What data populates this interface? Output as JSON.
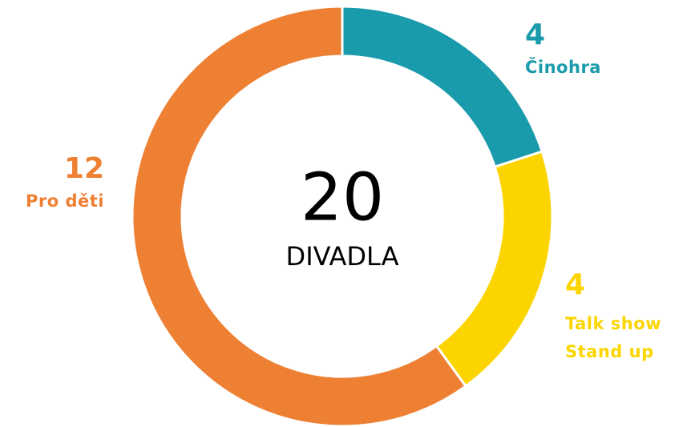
{
  "chart_data": {
    "type": "donut",
    "center_value": 20,
    "center_label": "DIVADLA",
    "series": [
      {
        "name": "Činohra",
        "color": "#1a9bab",
        "values": [
          4
        ]
      },
      {
        "name": "Talk show\nStand up",
        "color": "#fcd500",
        "values": [
          4
        ]
      },
      {
        "name": "Pro děti",
        "color": "#ee8034",
        "values": [
          12
        ]
      }
    ]
  }
}
